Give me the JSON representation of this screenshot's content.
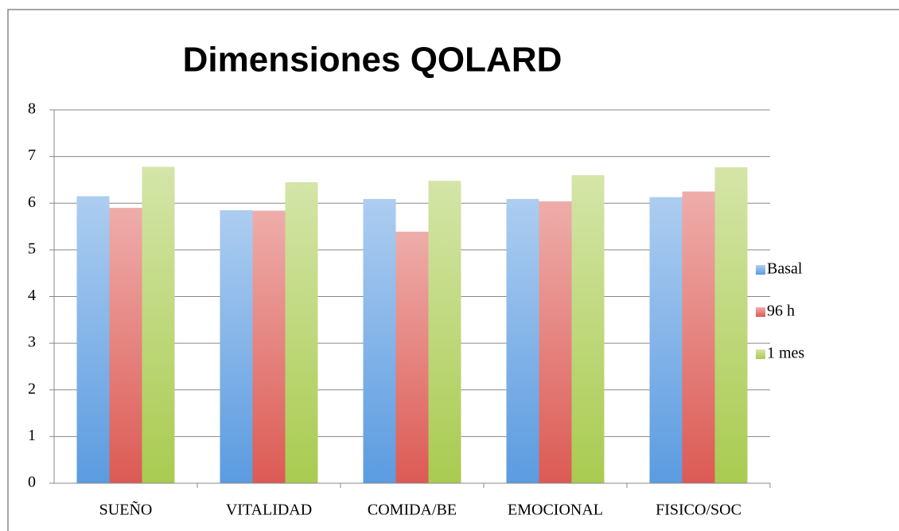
{
  "chart_data": {
    "type": "bar",
    "title": "Dimensiones QOLARD",
    "categories": [
      "SUEÑO",
      "VITALIDAD",
      "COMIDA/BE",
      "EMOCIONAL",
      "FISICO/SOC"
    ],
    "series": [
      {
        "name": "Basal",
        "color": "#5b9be0",
        "values": [
          6.15,
          5.85,
          6.09,
          6.09,
          6.13
        ]
      },
      {
        "name": "96 h",
        "color": "#dc5a54",
        "values": [
          5.9,
          5.84,
          5.39,
          6.04,
          6.25
        ]
      },
      {
        "name": "1 mes",
        "color": "#a9cb50",
        "values": [
          6.78,
          6.45,
          6.48,
          6.6,
          6.77
        ]
      }
    ],
    "ylim": [
      0,
      8
    ],
    "yticks": [
      0,
      1,
      2,
      3,
      4,
      5,
      6,
      7,
      8
    ],
    "grid": true,
    "legend": "right"
  }
}
